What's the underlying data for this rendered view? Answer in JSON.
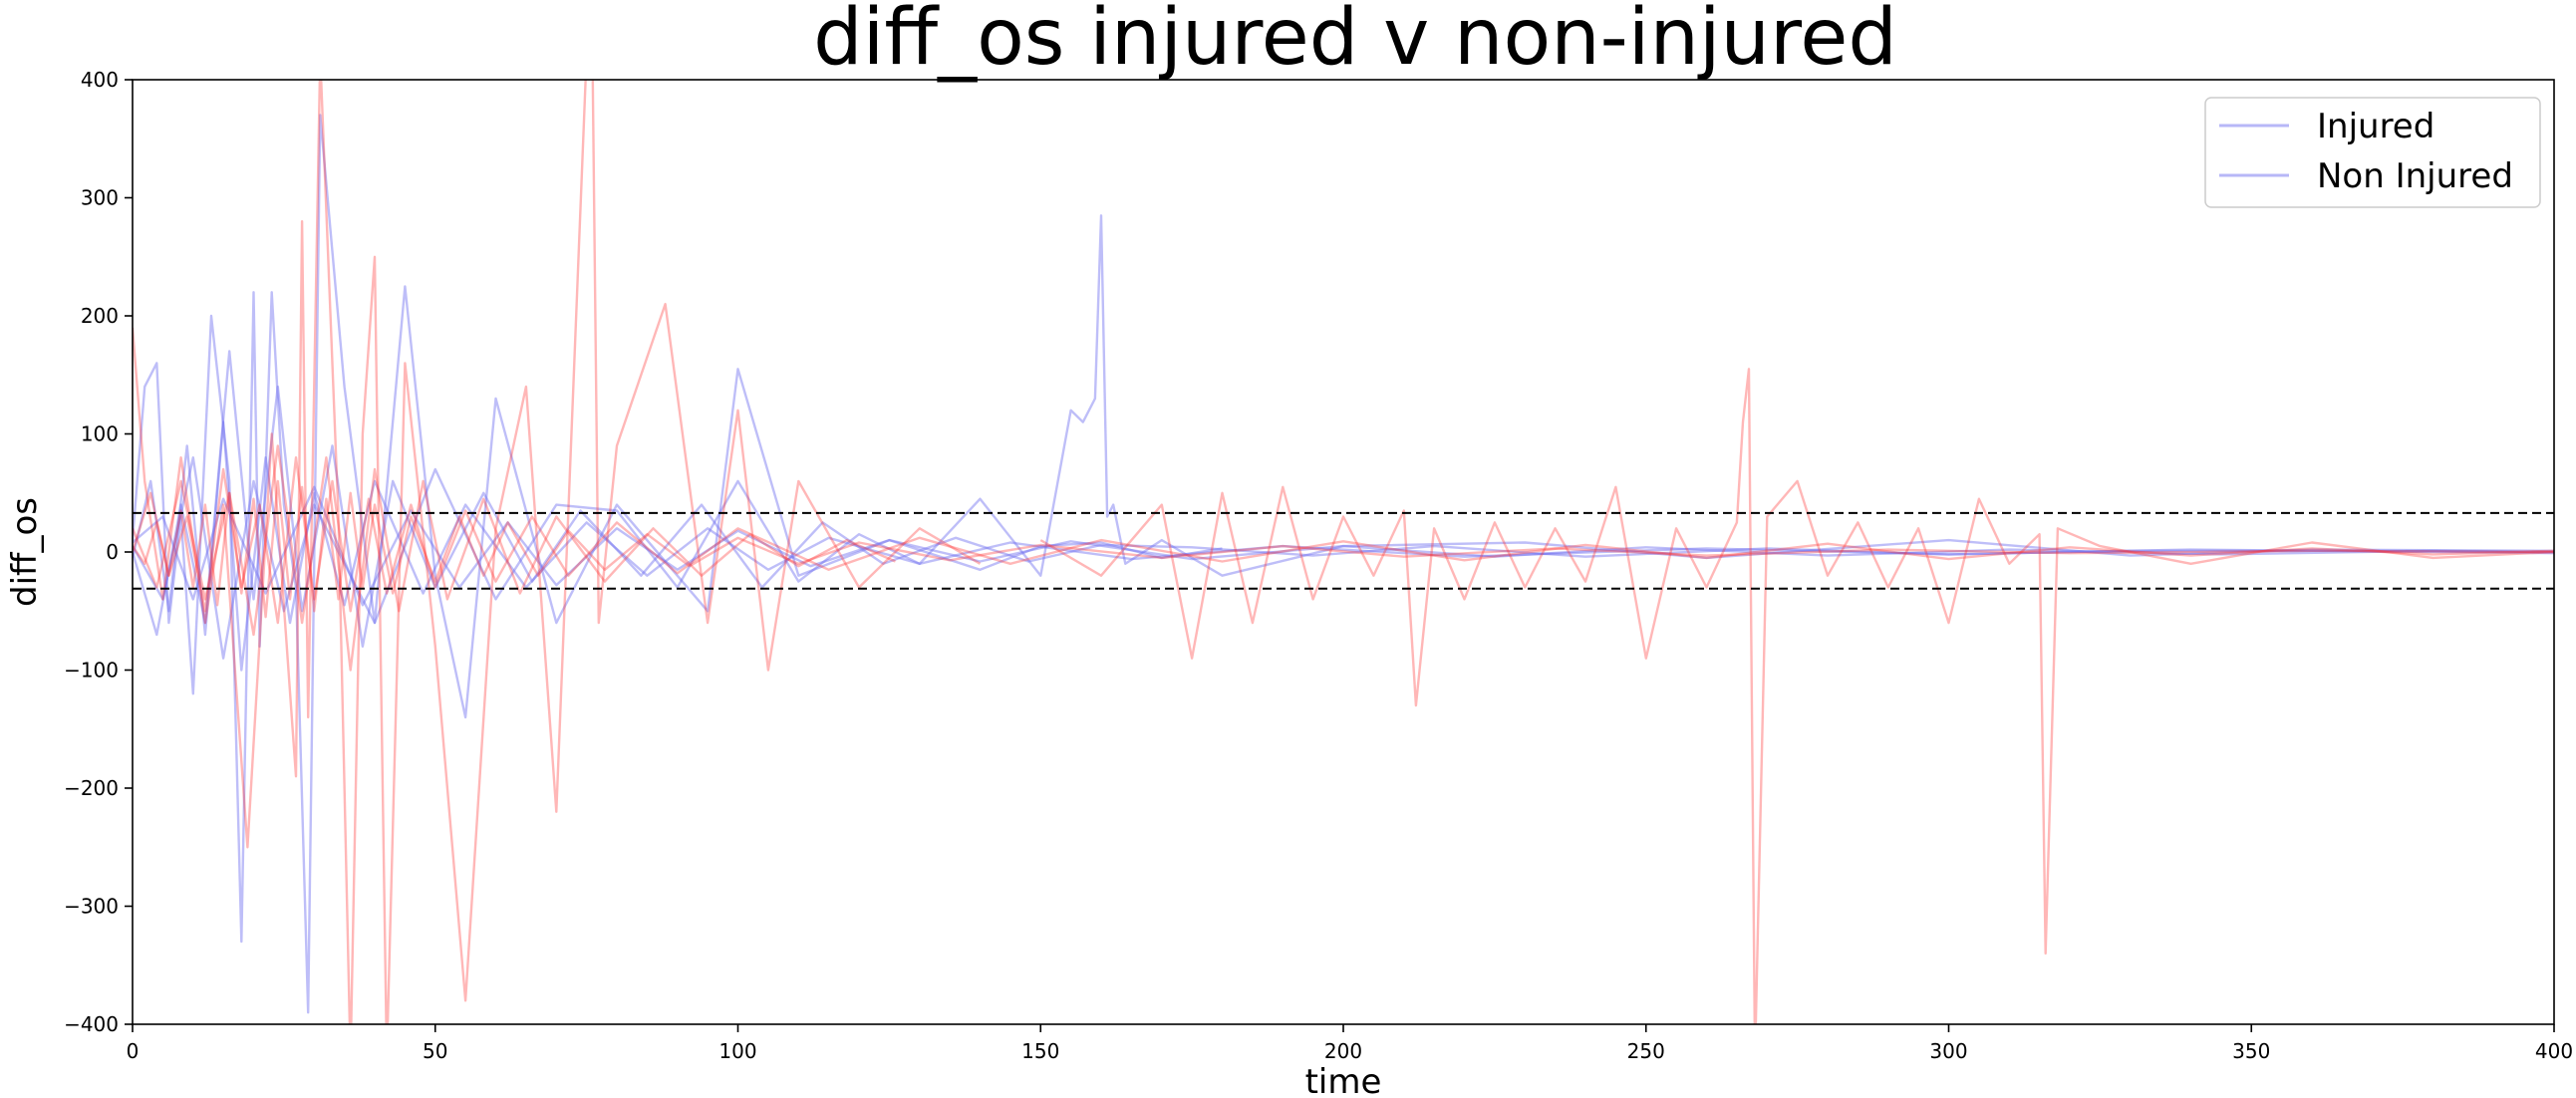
{
  "chart_data": {
    "type": "line",
    "title": "diff_os injured v non-injured",
    "xlabel": "time",
    "ylabel": "diff_os",
    "xlim": [
      0,
      400
    ],
    "ylim": [
      -400,
      400
    ],
    "xticks": [
      0,
      50,
      100,
      150,
      200,
      250,
      300,
      350,
      400
    ],
    "yticks": [
      -400,
      -300,
      -200,
      -100,
      0,
      100,
      200,
      300,
      400
    ],
    "grid": false,
    "legend_position": "top-right",
    "threshold_lines": [
      33,
      -31
    ],
    "colors": {
      "injured": "#6f6ff0",
      "non_injured": "#ff3030",
      "threshold": "#000000"
    },
    "series": [
      {
        "name": "Injured",
        "group": "injured",
        "x": [
          0,
          2,
          4,
          6,
          8,
          10,
          13,
          16,
          18,
          20,
          21,
          23,
          25,
          27,
          29,
          31,
          35,
          40,
          45,
          50,
          55,
          60,
          70,
          80,
          95,
          100,
          110,
          125,
          140,
          150,
          160,
          170,
          180
        ],
        "y": [
          10,
          140,
          160,
          -60,
          30,
          -120,
          200,
          60,
          -330,
          220,
          -80,
          220,
          40,
          -30,
          -390,
          370,
          140,
          -60,
          225,
          -20,
          -140,
          130,
          -60,
          40,
          -50,
          155,
          -20,
          10,
          -15,
          5,
          8,
          -5,
          3
        ]
      },
      {
        "name": "Non Injured",
        "group": "injured",
        "x": [
          0,
          5,
          10,
          15,
          20,
          25,
          30,
          40,
          50,
          60,
          70,
          80,
          90,
          100,
          110,
          120,
          130,
          140,
          150,
          155,
          157,
          159,
          160,
          161,
          162,
          164,
          170,
          180,
          200,
          230,
          260,
          300,
          330,
          360,
          400
        ],
        "y": [
          5,
          -40,
          80,
          -90,
          60,
          -50,
          40,
          -60,
          70,
          -40,
          40,
          35,
          -30,
          60,
          -25,
          15,
          -10,
          45,
          -20,
          120,
          110,
          130,
          285,
          30,
          40,
          -10,
          10,
          -20,
          5,
          8,
          -5,
          10,
          -3,
          2,
          1
        ]
      },
      {
        "group": "injured",
        "x": [
          0,
          3,
          6,
          9,
          12,
          15,
          18,
          22,
          26,
          30,
          35,
          40,
          48,
          55,
          65,
          75,
          85,
          95,
          105,
          115,
          130,
          145,
          165,
          190,
          220,
          260,
          300,
          340,
          400
        ],
        "y": [
          -5,
          60,
          -50,
          90,
          -70,
          110,
          -100,
          80,
          -60,
          50,
          -45,
          60,
          -35,
          40,
          -30,
          25,
          -20,
          20,
          -15,
          12,
          -10,
          8,
          -6,
          5,
          -4,
          3,
          -2,
          2,
          -1
        ]
      },
      {
        "group": "injured",
        "x": [
          0,
          4,
          8,
          12,
          16,
          20,
          24,
          28,
          33,
          38,
          43,
          50,
          58,
          66,
          74,
          84,
          94,
          104,
          114,
          124,
          136,
          148,
          160,
          175,
          195,
          215,
          240,
          270,
          300,
          330,
          370,
          400
        ],
        "y": [
          0,
          -70,
          40,
          -60,
          170,
          -40,
          140,
          -50,
          90,
          -80,
          60,
          -30,
          50,
          -25,
          35,
          -20,
          40,
          -30,
          25,
          -10,
          12,
          -8,
          6,
          4,
          -3,
          5,
          -4,
          3,
          -2,
          1,
          1,
          0
        ]
      },
      {
        "group": "injured",
        "x": [
          0,
          5,
          10,
          15,
          22,
          30,
          38,
          46,
          54,
          62,
          70,
          80,
          90,
          100,
          112,
          125,
          140,
          155,
          175,
          200,
          225,
          250,
          280,
          310,
          345,
          380,
          400
        ],
        "y": [
          8,
          30,
          -40,
          45,
          -35,
          55,
          -45,
          35,
          -30,
          25,
          -28,
          20,
          -15,
          18,
          -12,
          10,
          -8,
          9,
          -6,
          5,
          -4,
          4,
          -3,
          2,
          -2,
          1,
          0
        ]
      },
      {
        "name": "Non Injured",
        "group": "non_injured",
        "x": [
          0,
          2,
          5,
          8,
          12,
          15,
          19,
          23,
          27,
          28,
          29,
          31,
          34,
          36,
          38,
          40,
          42,
          45,
          50,
          55,
          60,
          65,
          70,
          75,
          76,
          77,
          80,
          88,
          95,
          100,
          105,
          110,
          120,
          130,
          140
        ],
        "y": [
          190,
          60,
          -40,
          80,
          -60,
          40,
          -250,
          100,
          -190,
          280,
          -140,
          420,
          30,
          -430,
          100,
          250,
          -430,
          160,
          -80,
          -380,
          20,
          140,
          -220,
          420,
          410,
          -60,
          90,
          210,
          -60,
          120,
          -100,
          60,
          -30,
          20,
          -10
        ]
      },
      {
        "group": "non_injured",
        "x": [
          0,
          4,
          8,
          12,
          16,
          20,
          24,
          28,
          32,
          36,
          40,
          44,
          48,
          52,
          58,
          64,
          70,
          78,
          86,
          94,
          102,
          110,
          118,
          126
        ],
        "y": [
          20,
          -30,
          60,
          -40,
          50,
          -70,
          90,
          -60,
          80,
          -100,
          70,
          -50,
          60,
          -40,
          45,
          -35,
          30,
          -25,
          20,
          -20,
          15,
          -12,
          10,
          -8
        ]
      },
      {
        "group": "non_injured",
        "x": [
          150,
          160,
          170,
          175,
          180,
          185,
          190,
          195,
          200,
          205,
          210,
          212,
          215,
          220,
          225,
          230,
          235,
          240,
          245,
          250,
          255,
          260,
          265,
          266,
          267,
          268,
          270,
          275,
          280,
          285,
          290,
          295,
          300,
          305,
          310,
          315,
          316,
          318,
          325,
          340,
          360,
          380,
          400
        ],
        "y": [
          10,
          -20,
          40,
          -90,
          50,
          -60,
          55,
          -40,
          30,
          -20,
          35,
          -130,
          20,
          -40,
          25,
          -30,
          20,
          -25,
          55,
          -90,
          20,
          -30,
          25,
          110,
          155,
          -430,
          30,
          60,
          -20,
          25,
          -30,
          20,
          -60,
          45,
          -10,
          15,
          -340,
          20,
          5,
          -10,
          8,
          -5,
          0
        ]
      },
      {
        "group": "non_injured",
        "x": [
          0,
          3,
          6,
          9,
          12,
          15,
          18,
          21,
          24,
          27,
          30,
          33,
          36,
          39,
          42,
          46,
          50,
          55,
          60,
          66,
          72,
          80,
          90,
          100,
          115,
          130,
          145,
          160,
          180,
          200,
          220,
          240,
          260,
          280,
          300,
          320,
          340,
          360,
          380,
          400
        ],
        "y": [
          0,
          50,
          -20,
          30,
          -50,
          70,
          -30,
          40,
          -60,
          80,
          -40,
          60,
          -50,
          45,
          -35,
          40,
          -30,
          35,
          -25,
          30,
          -20,
          25,
          -18,
          20,
          -15,
          12,
          -10,
          10,
          -8,
          9,
          -7,
          6,
          -5,
          7,
          -6,
          4,
          -3,
          3,
          -2,
          1
        ]
      },
      {
        "group": "non_injured",
        "x": [
          0,
          2,
          4,
          6,
          8,
          10,
          12,
          14,
          16,
          18,
          20,
          22,
          24,
          26,
          28,
          30,
          32,
          34,
          36,
          38,
          40,
          43,
          46,
          50,
          54,
          58,
          62,
          67,
          72,
          78,
          85,
          92,
          100,
          110,
          120,
          135,
          150,
          170,
          190,
          210,
          235,
          260,
          290,
          320,
          360,
          400
        ],
        "y": [
          5,
          -10,
          25,
          -20,
          35,
          -30,
          40,
          -45,
          50,
          -35,
          45,
          -55,
          60,
          -40,
          55,
          -50,
          45,
          -40,
          50,
          -30,
          40,
          -35,
          30,
          -25,
          30,
          -20,
          25,
          -20,
          18,
          -15,
          15,
          -12,
          12,
          -10,
          8,
          -7,
          6,
          -5,
          5,
          -4,
          3,
          -3,
          2,
          -1,
          1,
          0
        ]
      }
    ],
    "legend": [
      {
        "label": "Injured",
        "color": "#6f6ff0"
      },
      {
        "label": "Non Injured",
        "color": "#6f6ff0"
      }
    ]
  }
}
